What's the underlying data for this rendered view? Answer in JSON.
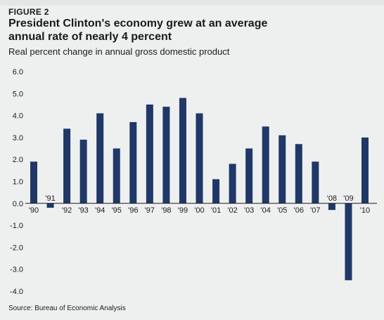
{
  "figure_label": "FIGURE 2",
  "title": "President Clinton's economy grew at an average annual rate of nearly 4 percent",
  "subtitle": "Real percent change in annual gross domestic product",
  "source": "Source: Bureau of Economic Analysis",
  "colors": {
    "bar": "#1f3867",
    "gridline": "#ffffff",
    "axis": "#1a1a1a",
    "background": "#eef0ef"
  },
  "chart_data": {
    "type": "bar",
    "title": "President Clinton's economy grew at an average annual rate of nearly 4 percent",
    "ylabel": "Real percent change in annual gross domestic product",
    "xlabel": "",
    "ylim": [
      -4.0,
      6.0
    ],
    "yticks": [
      "6.0",
      "5.0",
      "4.0",
      "3.0",
      "2.0",
      "1.0",
      "0.0",
      "-1.0",
      "-2.0",
      "-3.0",
      "-4.0"
    ],
    "grid": false,
    "categories": [
      "'90",
      "'91",
      "'92",
      "'93",
      "'94",
      "'95",
      "'96",
      "'97",
      "'98",
      "'99",
      "'00",
      "'01",
      "'02",
      "'03",
      "'04",
      "'05",
      "'06",
      "'07",
      "'08",
      "'09",
      "'10"
    ],
    "values": [
      1.9,
      -0.2,
      3.4,
      2.9,
      4.1,
      2.5,
      3.7,
      4.5,
      4.4,
      4.8,
      4.1,
      1.1,
      1.8,
      2.5,
      3.5,
      3.1,
      2.7,
      1.9,
      -0.3,
      -3.5,
      3.0
    ]
  }
}
